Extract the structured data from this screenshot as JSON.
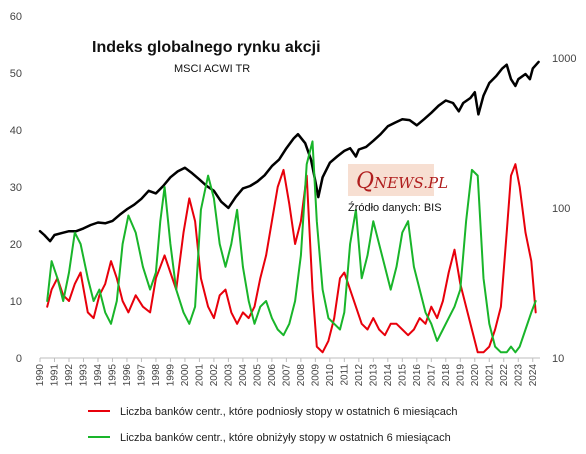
{
  "chart_data": {
    "type": "line",
    "title": "Indeks globalnego rynku akcji",
    "subtitle": "MSCI ACWI TR",
    "source": "Źródło danych: BIS",
    "logo": {
      "text_q": "Q",
      "text_rest": "NEWS.PL"
    },
    "colors": {
      "index": "#000000",
      "hikes": "#e8000b",
      "cuts": "#19b52a",
      "logo_bg": "#f7dfd2",
      "logo_text": "#b01e1e"
    },
    "left_axis": {
      "min": 0,
      "max": 60,
      "ticks": [
        "0",
        "10",
        "20",
        "30",
        "40",
        "50",
        "60"
      ]
    },
    "right_axis": {
      "scale": "log",
      "min": 10,
      "max": 1900,
      "ticks": [
        "10",
        "100",
        "1000"
      ]
    },
    "x_axis": {
      "min": 1990,
      "max": 2024.5,
      "ticks": [
        "1990",
        "1991",
        "1992",
        "1993",
        "1994",
        "1995",
        "1996",
        "1997",
        "1998",
        "1999",
        "2000",
        "2001",
        "2002",
        "2003",
        "2004",
        "2005",
        "2006",
        "2007",
        "2008",
        "2009",
        "2010",
        "2011",
        "2012",
        "2013",
        "2014",
        "2015",
        "2016",
        "2017",
        "2018",
        "2019",
        "2020",
        "2021",
        "2022",
        "2023",
        "2024"
      ]
    },
    "grid": false,
    "legend": {
      "placement": "bottom",
      "entries": [
        "Liczba banków centr., które podniosły stopy w ostatnich 6 miesiącach",
        "Liczba banków centr., które obniżyły stopy w ostatnich 6 miesiącach"
      ]
    },
    "series": [
      {
        "name": "MSCI ACWI TR",
        "axis": "right",
        "x": [
          1990.0,
          1990.3,
          1990.7,
          1991.0,
          1991.5,
          1992.0,
          1992.5,
          1993.0,
          1993.5,
          1994.0,
          1994.5,
          1995.0,
          1995.5,
          1996.0,
          1996.5,
          1997.0,
          1997.5,
          1998.0,
          1998.5,
          1999.0,
          1999.5,
          2000.0,
          2000.5,
          2001.0,
          2001.5,
          2002.0,
          2002.5,
          2003.0,
          2003.5,
          2004.0,
          2004.5,
          2005.0,
          2005.5,
          2006.0,
          2006.5,
          2007.0,
          2007.5,
          2007.8,
          2008.3,
          2008.7,
          2009.0,
          2009.2,
          2009.5,
          2010.0,
          2010.5,
          2011.0,
          2011.4,
          2011.8,
          2012.0,
          2012.5,
          2013.0,
          2013.5,
          2014.0,
          2014.5,
          2015.0,
          2015.5,
          2016.0,
          2016.5,
          2017.0,
          2017.5,
          2018.0,
          2018.5,
          2018.9,
          2019.2,
          2019.7,
          2020.0,
          2020.25,
          2020.6,
          2021.0,
          2021.5,
          2021.9,
          2022.2,
          2022.5,
          2022.8,
          2023.0,
          2023.5,
          2023.8,
          2024.0,
          2024.4
        ],
        "values": [
          70,
          66,
          60,
          66,
          68,
          70,
          70,
          73,
          77,
          80,
          79,
          82,
          90,
          98,
          105,
          115,
          130,
          125,
          140,
          160,
          175,
          185,
          170,
          155,
          140,
          130,
          110,
          100,
          118,
          135,
          140,
          150,
          165,
          190,
          210,
          250,
          290,
          310,
          270,
          210,
          150,
          118,
          160,
          200,
          220,
          240,
          250,
          220,
          245,
          255,
          280,
          310,
          350,
          370,
          390,
          385,
          355,
          390,
          430,
          480,
          520,
          500,
          440,
          500,
          540,
          590,
          420,
          560,
          680,
          760,
          850,
          900,
          720,
          650,
          720,
          780,
          720,
          850,
          940
        ]
      },
      {
        "name": "Liczba banków centr., które podniosły stopy w ostatnich 6 miesiącach",
        "axis": "left",
        "x": [
          1990.5,
          1990.8,
          1991.2,
          1991.6,
          1992.0,
          1992.4,
          1992.8,
          1993.3,
          1993.7,
          1994.1,
          1994.5,
          1994.9,
          1995.3,
          1995.7,
          1996.1,
          1996.6,
          1997.1,
          1997.6,
          1998.0,
          1998.3,
          1998.6,
          1999.0,
          1999.4,
          1999.9,
          2000.3,
          2000.7,
          2001.1,
          2001.6,
          2002.0,
          2002.4,
          2002.8,
          2003.2,
          2003.6,
          2004.0,
          2004.4,
          2004.8,
          2005.2,
          2005.6,
          2006.0,
          2006.4,
          2006.8,
          2007.2,
          2007.6,
          2008.0,
          2008.4,
          2008.8,
          2009.1,
          2009.5,
          2009.9,
          2010.3,
          2010.7,
          2011.0,
          2011.4,
          2011.8,
          2012.2,
          2012.6,
          2013.0,
          2013.4,
          2013.8,
          2014.2,
          2014.6,
          2015.0,
          2015.4,
          2015.8,
          2016.2,
          2016.6,
          2017.0,
          2017.4,
          2017.8,
          2018.2,
          2018.6,
          2019.0,
          2019.4,
          2019.8,
          2020.2,
          2020.6,
          2021.0,
          2021.4,
          2021.8,
          2022.2,
          2022.5,
          2022.8,
          2023.1,
          2023.5,
          2023.9,
          2024.2
        ],
        "values": [
          9,
          12,
          14,
          11,
          10,
          13,
          15,
          8,
          7,
          11,
          13,
          17,
          14,
          10,
          8,
          11,
          9,
          8,
          14,
          16,
          18,
          15,
          12,
          22,
          28,
          24,
          14,
          9,
          7,
          11,
          12,
          8,
          6,
          8,
          7,
          9,
          14,
          18,
          24,
          30,
          33,
          27,
          20,
          24,
          32,
          12,
          2,
          1,
          3,
          7,
          14,
          15,
          12,
          9,
          6,
          5,
          7,
          5,
          4,
          6,
          6,
          5,
          4,
          5,
          7,
          6,
          9,
          7,
          10,
          15,
          19,
          13,
          9,
          5,
          1,
          1,
          2,
          5,
          9,
          22,
          32,
          34,
          30,
          22,
          17,
          8
        ]
      },
      {
        "name": "Liczba banków centr., które obniżyły stopy w ostatnich 6 miesiącach",
        "axis": "left",
        "x": [
          1990.5,
          1990.8,
          1991.2,
          1991.6,
          1992.0,
          1992.4,
          1992.8,
          1993.3,
          1993.7,
          1994.1,
          1994.5,
          1994.9,
          1995.3,
          1995.7,
          1996.1,
          1996.6,
          1997.1,
          1997.6,
          1998.0,
          1998.3,
          1998.6,
          1999.0,
          1999.4,
          1999.9,
          2000.3,
          2000.7,
          2001.1,
          2001.6,
          2002.0,
          2002.4,
          2002.8,
          2003.2,
          2003.6,
          2004.0,
          2004.4,
          2004.8,
          2005.2,
          2005.6,
          2006.0,
          2006.4,
          2006.8,
          2007.2,
          2007.6,
          2008.0,
          2008.4,
          2008.8,
          2009.1,
          2009.5,
          2009.9,
          2010.3,
          2010.7,
          2011.0,
          2011.4,
          2011.8,
          2012.2,
          2012.6,
          2013.0,
          2013.4,
          2013.8,
          2014.2,
          2014.6,
          2015.0,
          2015.4,
          2015.8,
          2016.2,
          2016.6,
          2017.0,
          2017.4,
          2017.8,
          2018.2,
          2018.6,
          2019.0,
          2019.4,
          2019.8,
          2020.2,
          2020.6,
          2021.0,
          2021.4,
          2021.8,
          2022.2,
          2022.5,
          2022.8,
          2023.1,
          2023.5,
          2023.9,
          2024.2
        ],
        "values": [
          10,
          17,
          14,
          10,
          15,
          22,
          20,
          14,
          10,
          12,
          8,
          6,
          10,
          20,
          25,
          22,
          16,
          12,
          15,
          24,
          30,
          20,
          12,
          8,
          6,
          9,
          26,
          32,
          28,
          20,
          16,
          20,
          26,
          16,
          10,
          6,
          9,
          10,
          7,
          5,
          4,
          6,
          10,
          18,
          34,
          38,
          24,
          12,
          7,
          6,
          5,
          8,
          20,
          26,
          14,
          18,
          24,
          20,
          16,
          12,
          16,
          22,
          24,
          16,
          12,
          8,
          6,
          3,
          5,
          7,
          9,
          12,
          24,
          33,
          32,
          14,
          6,
          2,
          1,
          1,
          2,
          1,
          2,
          5,
          8,
          10
        ]
      }
    ]
  }
}
